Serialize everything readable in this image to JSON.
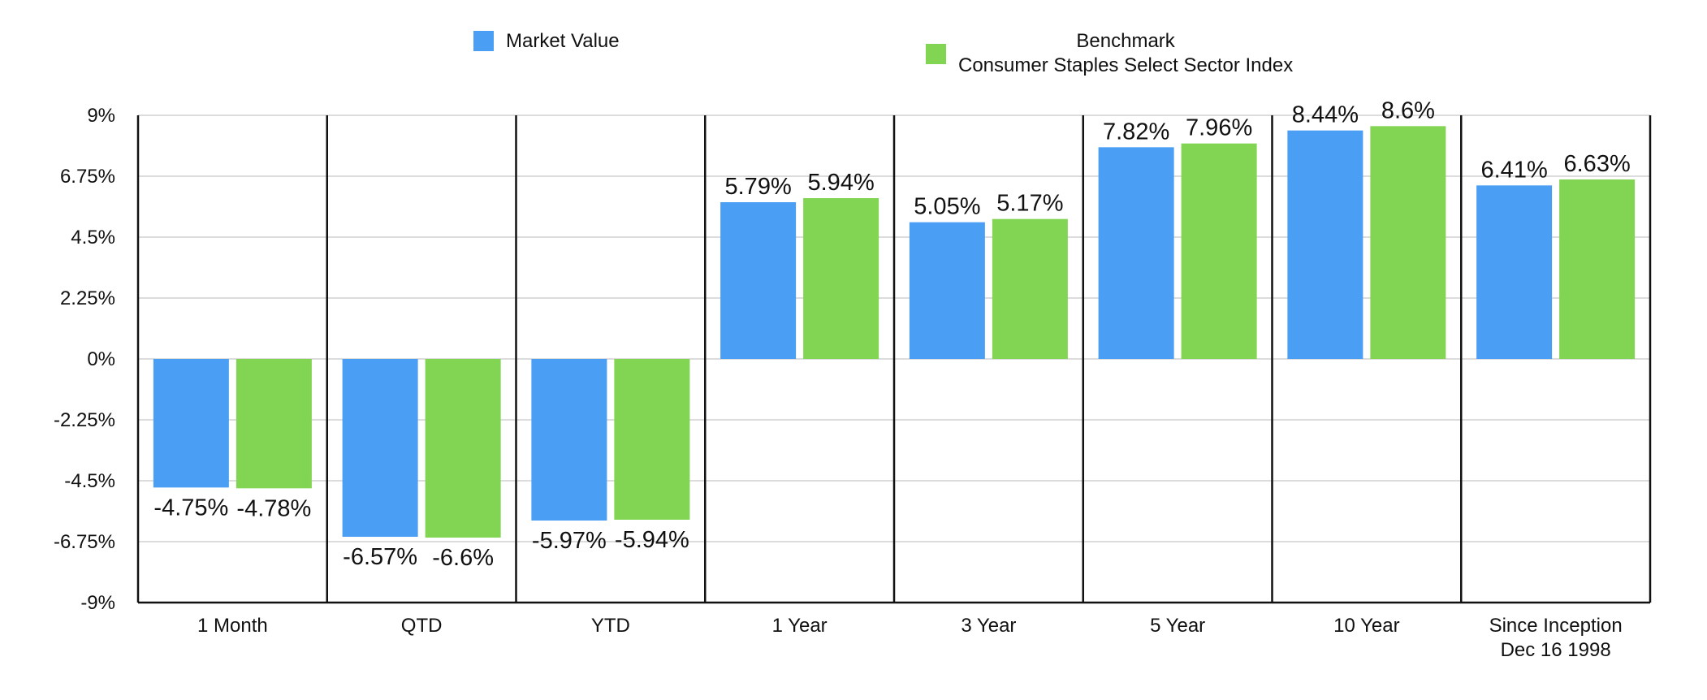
{
  "legend": {
    "series_1": {
      "label": "Market Value"
    },
    "series_2": {
      "line1": "Benchmark",
      "line2": "Consumer Staples Select Sector Index"
    }
  },
  "chart_data": {
    "type": "bar",
    "categories": [
      [
        "1 Month"
      ],
      [
        "QTD"
      ],
      [
        "YTD"
      ],
      [
        "1 Year"
      ],
      [
        "3 Year"
      ],
      [
        "5 Year"
      ],
      [
        "10 Year"
      ],
      [
        "Since Inception",
        "Dec 16 1998"
      ]
    ],
    "series": [
      {
        "name": "Market Value",
        "color": "#4a9ff5",
        "values": [
          -4.75,
          -6.57,
          -5.97,
          5.79,
          5.05,
          7.82,
          8.44,
          6.41
        ],
        "labels": [
          "-4.75%",
          "-6.57%",
          "-5.97%",
          "5.79%",
          "5.05%",
          "7.82%",
          "8.44%",
          "6.41%"
        ]
      },
      {
        "name": "Benchmark Consumer Staples Select Sector Index",
        "color": "#82d552",
        "values": [
          -4.78,
          -6.6,
          -5.94,
          5.94,
          5.17,
          7.96,
          8.6,
          6.63
        ],
        "labels": [
          "-4.78%",
          "-6.6%",
          "-5.94%",
          "5.94%",
          "5.17%",
          "7.96%",
          "8.6%",
          "6.63%"
        ]
      }
    ],
    "y_ticks": [
      9,
      6.75,
      4.5,
      2.25,
      0,
      -2.25,
      -4.5,
      -6.75,
      -9
    ],
    "y_tick_labels": [
      "9%",
      "6.75%",
      "4.5%",
      "2.25%",
      "0%",
      "-2.25%",
      "-4.5%",
      "-6.75%",
      "-9%"
    ],
    "ylim": [
      -9,
      9
    ],
    "grid": true,
    "legend_position": "top"
  }
}
